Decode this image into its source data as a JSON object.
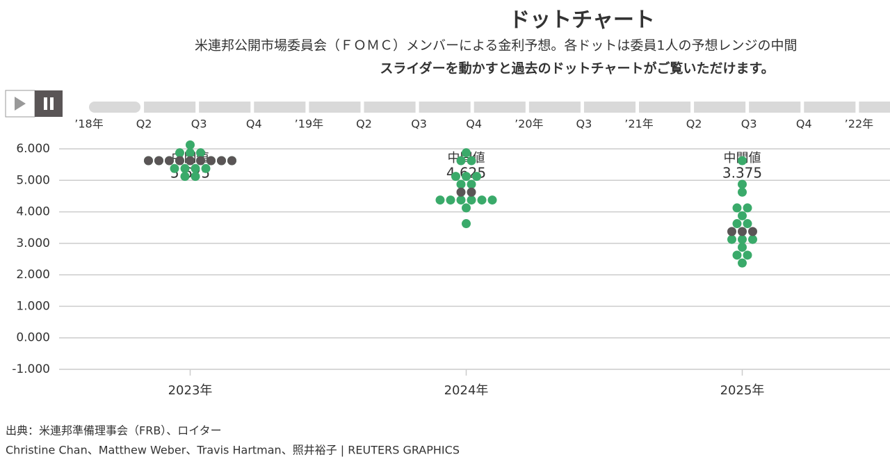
{
  "chart_data": {
    "type": "dot",
    "title": "ドットチャート",
    "subtitle": "米連邦公開市場委員会（ＦＯＭＣ）メンバーによる金利予想。各ドットは委員1人の予想レンジの中間",
    "instruction": "スライダーを動かすと過去のドットチャートがご覧いただけます。",
    "categories": [
      "2023年",
      "2024年",
      "2025年"
    ],
    "series": [
      {
        "color": "#3aaa6a",
        "values": [
          [
            6.125,
            5.875,
            5.875,
            5.875,
            5.625,
            5.625,
            5.625,
            5.625,
            5.625,
            5.625,
            5.625,
            5.625,
            5.625,
            5.375,
            5.375,
            5.375,
            5.375,
            5.125,
            5.125
          ],
          [
            5.875,
            5.625,
            5.625,
            5.125,
            5.125,
            5.125,
            4.875,
            4.875,
            4.375,
            4.375,
            4.375,
            4.375,
            4.375,
            4.375,
            4.125,
            3.625
          ],
          [
            5.625,
            4.875,
            4.625,
            4.125,
            4.125,
            3.875,
            3.625,
            3.625,
            3.125,
            3.125,
            3.125,
            2.875,
            2.625,
            2.625,
            2.375
          ]
        ]
      },
      {
        "color": "#5a5556",
        "values": [
          [
            5.625,
            5.625,
            5.625,
            5.625,
            5.625,
            5.625,
            5.625,
            5.625,
            5.625
          ],
          [
            4.625,
            4.625
          ],
          [
            3.375,
            3.375,
            3.375
          ]
        ]
      }
    ],
    "median_label": "中間値",
    "medians": [
      5.625,
      4.625,
      3.375
    ],
    "ylim": [
      -1.2,
      6.3
    ],
    "yticks": [
      {
        "value": 6,
        "label": "6.000"
      },
      {
        "value": 5,
        "label": "5.000"
      },
      {
        "value": 4,
        "label": "4.000"
      },
      {
        "value": 3,
        "label": "3.000"
      },
      {
        "value": 2,
        "label": "2.000"
      },
      {
        "value": 1,
        "label": "1.000"
      },
      {
        "value": 0,
        "label": "0.000"
      },
      {
        "value": -1,
        "label": "-1.000"
      }
    ],
    "grid": true
  },
  "slider": {
    "labels": [
      "’18年",
      "Q2",
      "Q3",
      "Q4",
      "’19年",
      "Q2",
      "Q3",
      "Q4",
      "’20年",
      "Q3",
      "’21年",
      "Q2",
      "Q3",
      "Q4",
      "’22年"
    ]
  },
  "footer": {
    "source": "出典：米連邦準備理事会（FRB）、ロイター",
    "credits": "Christine Chan、Matthew Weber、Travis Hartman、照井裕子 | REUTERS GRAPHICS"
  }
}
